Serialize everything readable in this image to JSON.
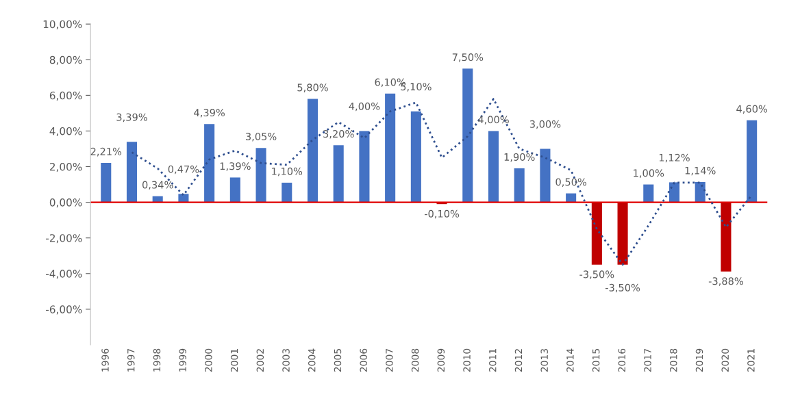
{
  "chart_data": {
    "type": "bar",
    "categories": [
      "1996",
      "1997",
      "1998",
      "1999",
      "2000",
      "2001",
      "2002",
      "2003",
      "2004",
      "2005",
      "2006",
      "2007",
      "2008",
      "2009",
      "2010",
      "2011",
      "2012",
      "2013",
      "2014",
      "2015",
      "2016",
      "2017",
      "2018",
      "2019",
      "2020",
      "2021"
    ],
    "series": [
      {
        "colors": [
          "#4472c4",
          "#4472c4",
          "#4472c4",
          "#4472c4",
          "#4472c4",
          "#4472c4",
          "#4472c4",
          "#4472c4",
          "#4472c4",
          "#4472c4",
          "#4472c4",
          "#4472c4",
          "#4472c4",
          "#c00000",
          "#4472c4",
          "#4472c4",
          "#4472c4",
          "#4472c4",
          "#4472c4",
          "#c00000",
          "#c00000",
          "#4472c4",
          "#4472c4",
          "#4472c4",
          "#c00000",
          "#4472c4"
        ],
        "values": [
          2.21,
          3.39,
          0.34,
          0.47,
          4.39,
          1.39,
          3.05,
          1.1,
          5.8,
          3.2,
          4.0,
          6.1,
          5.1,
          -0.1,
          7.5,
          4.0,
          1.9,
          3.0,
          0.5,
          -3.5,
          -3.5,
          1.0,
          1.12,
          1.14,
          -3.88,
          4.6
        ],
        "value_labels": [
          "2,21%",
          "3,39%",
          "0,34%",
          "0,47%",
          "4,39%",
          "1,39%",
          "3,05%",
          "1,10%",
          "5,80%",
          "3,20%",
          "4,00%",
          "6,10%",
          "5,10%",
          "-0,10%",
          "7,50%",
          "4,00%",
          "1,90%",
          "3,00%",
          "0,50%",
          "-3,50%",
          "-3,50%",
          "1,00%",
          "1,12%",
          "1,14%",
          "-3,88%",
          "4,60%"
        ]
      },
      {
        "type": "line",
        "color": "#2f4f8f",
        "line_style": "dotted",
        "values": [
          null,
          2.8,
          1.9,
          0.4,
          2.4,
          2.9,
          2.2,
          2.1,
          3.5,
          4.5,
          3.6,
          5.1,
          5.6,
          2.5,
          3.7,
          5.8,
          3.0,
          2.5,
          1.8,
          -1.5,
          -3.5,
          -1.3,
          1.1,
          1.1,
          -1.4,
          0.4
        ]
      }
    ],
    "ylim": [
      -8,
      10
    ],
    "yticks": [
      {
        "value": -6,
        "label": "-6,00%"
      },
      {
        "value": -4,
        "label": "-4,00%"
      },
      {
        "value": -2,
        "label": "-2,00%"
      },
      {
        "value": 0,
        "label": "0,00%"
      },
      {
        "value": 2,
        "label": "2,00%"
      },
      {
        "value": 4,
        "label": "4,00%"
      },
      {
        "value": 6,
        "label": "6,00%"
      },
      {
        "value": 8,
        "label": "8,00%"
      },
      {
        "value": 10,
        "label": "10,00%"
      }
    ],
    "ref_lines": [
      {
        "axis": "y",
        "value": 0,
        "color": "#e00000"
      }
    ]
  }
}
